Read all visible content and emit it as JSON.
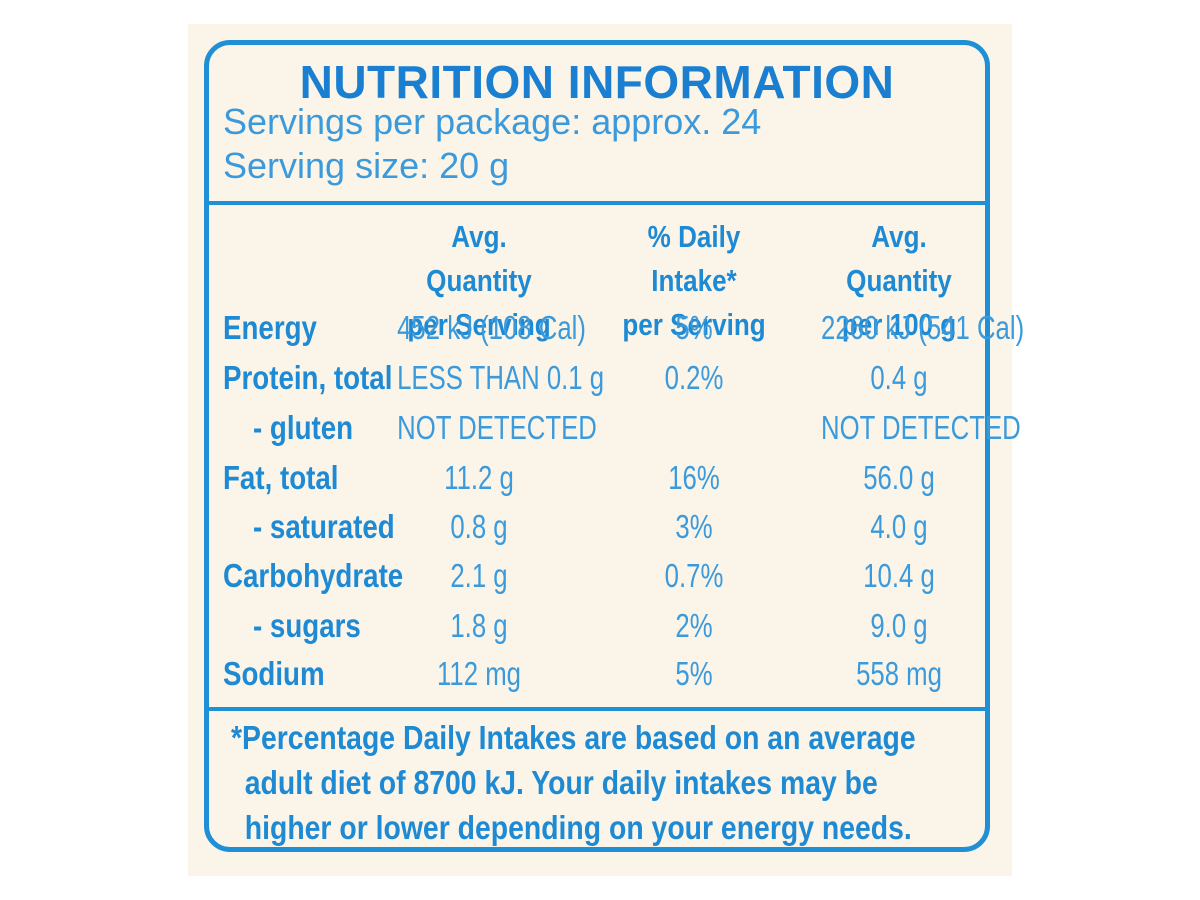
{
  "title": "NUTRITION INFORMATION",
  "servings_per_package": "Servings per package: approx. 24",
  "serving_size": "Serving size: 20 g",
  "headers": {
    "col1_line1": "Avg. Quantity",
    "col1_line2": "per Serving",
    "col2_line1": "% Daily Intake*",
    "col2_line2": "per Serving",
    "col3_line1": "Avg. Quantity",
    "col3_line2": "per 100 g"
  },
  "rows": [
    {
      "name": "Energy",
      "per_serving": "452 kJ (108 Cal)",
      "daily_intake": "5%",
      "per_100g": "2260 kJ (541 Cal)"
    },
    {
      "name": "Protein, total",
      "per_serving": "LESS THAN 0.1 g",
      "daily_intake": "0.2%",
      "per_100g": "0.4 g"
    },
    {
      "name": "- gluten",
      "per_serving": "NOT DETECTED",
      "daily_intake": "",
      "per_100g": "NOT DETECTED"
    },
    {
      "name": "Fat, total",
      "per_serving": "11.2 g",
      "daily_intake": "16%",
      "per_100g": "56.0 g"
    },
    {
      "name": "- saturated",
      "per_serving": "0.8 g",
      "daily_intake": "3%",
      "per_100g": "4.0 g"
    },
    {
      "name": "Carbohydrate",
      "per_serving": "2.1 g",
      "daily_intake": "0.7%",
      "per_100g": "10.4 g"
    },
    {
      "name": "- sugars",
      "per_serving": "1.8 g",
      "daily_intake": "2%",
      "per_100g": "9.0 g"
    },
    {
      "name": "Sodium",
      "per_serving": "112 mg",
      "daily_intake": "5%",
      "per_100g": "558 mg"
    }
  ],
  "footnote": {
    "line1": "*Percentage Daily Intakes are based on an average",
    "line2": "adult diet of 8700 kJ. Your daily intakes may be",
    "line3": "higher or lower depending on your energy needs."
  },
  "colors": {
    "border": "#1f8fd6",
    "text": "#2e95d9",
    "background": "#fbf5e9"
  }
}
